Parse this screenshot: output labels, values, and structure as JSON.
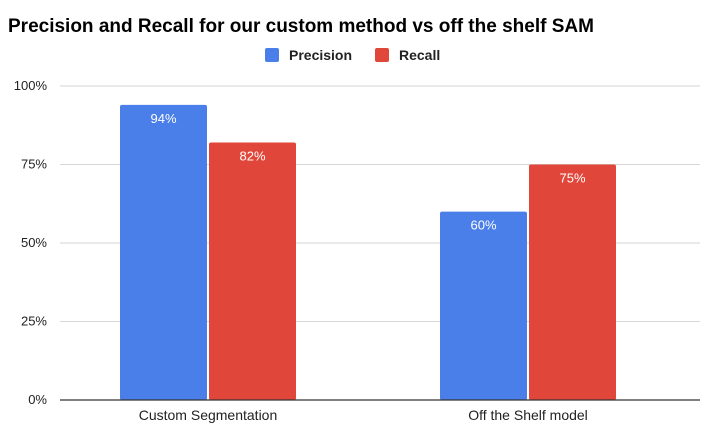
{
  "chart_data": {
    "type": "bar",
    "title": "Precision and Recall for our custom method vs off the shelf SAM",
    "categories": [
      "Custom Segmentation",
      "Off the Shelf model"
    ],
    "series": [
      {
        "name": "Precision",
        "color": "#4a7ee8",
        "values": [
          94,
          60
        ],
        "labels": [
          "94%",
          "60%"
        ]
      },
      {
        "name": "Recall",
        "color": "#e0473a",
        "values": [
          82,
          75
        ],
        "labels": [
          "82%",
          "75%"
        ]
      }
    ],
    "yticks": [
      0,
      25,
      50,
      75,
      100
    ],
    "ytick_labels": [
      "0%",
      "25%",
      "50%",
      "75%",
      "100%"
    ],
    "ylim": [
      0,
      100
    ],
    "legend": "top-center",
    "grid": true
  }
}
